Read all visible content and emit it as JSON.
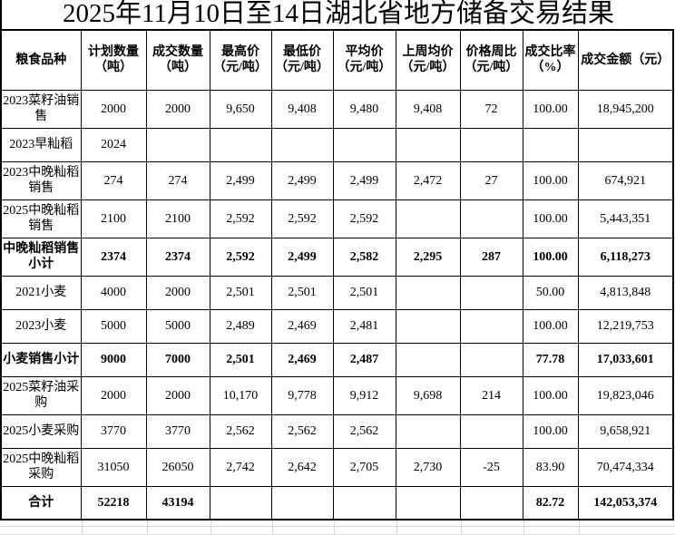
{
  "title": "2025年11月10日至14日湖北省地方储备交易结果",
  "table": {
    "headers": [
      {
        "label": "粮食品种"
      },
      {
        "label": "计划数量\n（吨）"
      },
      {
        "label": "成交数量\n（吨）"
      },
      {
        "label": "最高价\n（元/吨）"
      },
      {
        "label": "最低价\n（元/吨）"
      },
      {
        "label": "平均价\n（元/吨）"
      },
      {
        "label": "上周均价\n（元/吨）"
      },
      {
        "label": "价格周比\n（元/吨）"
      },
      {
        "label": "成交比率\n（%）"
      },
      {
        "label": "成交金额（元）"
      }
    ],
    "rows": [
      {
        "bold": false,
        "cells": [
          "2023菜籽油销售",
          "2000",
          "2000",
          "9,650",
          "9,408",
          "9,480",
          "9,408",
          "72",
          "100.00",
          "18,945,200"
        ]
      },
      {
        "bold": false,
        "cells": [
          "2023早籼稻",
          "2024",
          "",
          "",
          "",
          "",
          "",
          "",
          "",
          ""
        ]
      },
      {
        "bold": false,
        "cells": [
          "2023中晚籼稻销售",
          "274",
          "274",
          "2,499",
          "2,499",
          "2,499",
          "2,472",
          "27",
          "100.00",
          "674,921"
        ]
      },
      {
        "bold": false,
        "cells": [
          "2025中晚籼稻销售",
          "2100",
          "2100",
          "2,592",
          "2,592",
          "2,592",
          "",
          "",
          "100.00",
          "5,443,351"
        ]
      },
      {
        "bold": true,
        "cells": [
          "中晚籼稻销售小计",
          "2374",
          "2374",
          "2,592",
          "2,499",
          "2,582",
          "2,295",
          "287",
          "100.00",
          "6,118,273"
        ]
      },
      {
        "bold": false,
        "cells": [
          "2021小麦",
          "4000",
          "2000",
          "2,501",
          "2,501",
          "2,501",
          "",
          "",
          "50.00",
          "4,813,848"
        ]
      },
      {
        "bold": false,
        "cells": [
          "2023小麦",
          "5000",
          "5000",
          "2,489",
          "2,469",
          "2,481",
          "",
          "",
          "100.00",
          "12,219,753"
        ]
      },
      {
        "bold": true,
        "cells": [
          "小麦销售小计",
          "9000",
          "7000",
          "2,501",
          "2,469",
          "2,487",
          "",
          "",
          "77.78",
          "17,033,601"
        ]
      },
      {
        "bold": false,
        "cells": [
          "2025菜籽油采购",
          "2000",
          "2000",
          "10,170",
          "9,778",
          "9,912",
          "9,698",
          "214",
          "100.00",
          "19,823,046"
        ]
      },
      {
        "bold": false,
        "cells": [
          "2025小麦采购",
          "3770",
          "3770",
          "2,562",
          "2,562",
          "2,562",
          "",
          "",
          "100.00",
          "9,658,921"
        ]
      },
      {
        "bold": false,
        "cells": [
          "2025中晚籼稻采购",
          "31050",
          "26050",
          "2,742",
          "2,642",
          "2,705",
          "2,730",
          "-25",
          "83.90",
          "70,474,334"
        ]
      },
      {
        "bold": true,
        "cells": [
          "合计",
          "52218",
          "43194",
          "",
          "",
          "",
          "",
          "",
          "82.72",
          "142,053,374"
        ]
      }
    ]
  }
}
